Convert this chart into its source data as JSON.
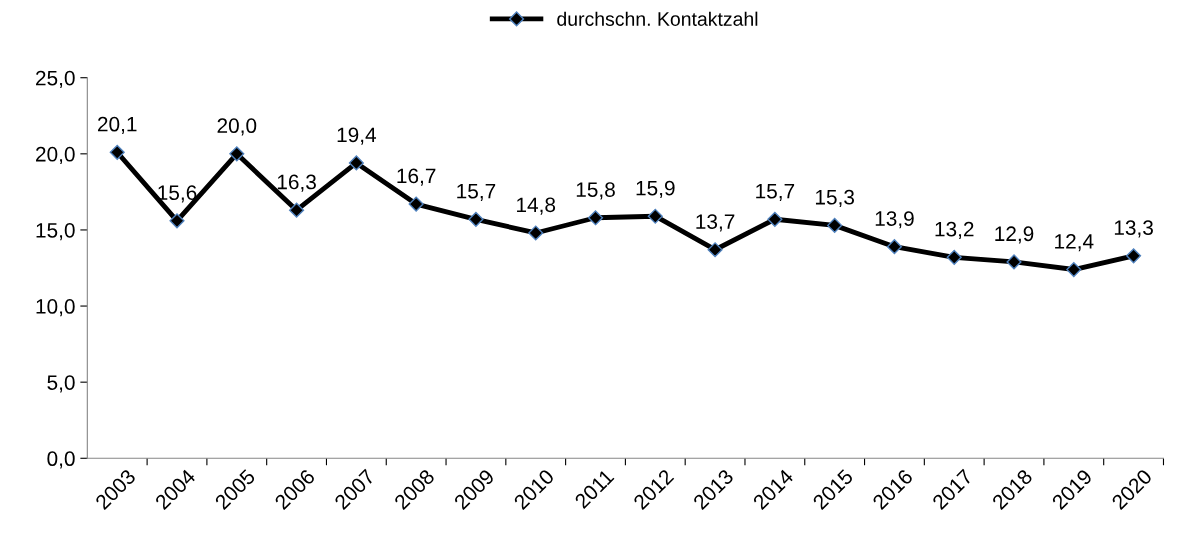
{
  "chart_data": {
    "type": "line",
    "categories": [
      "2003",
      "2004",
      "2005",
      "2006",
      "2007",
      "2008",
      "2009",
      "2010",
      "2011",
      "2012",
      "2013",
      "2014",
      "2015",
      "2016",
      "2017",
      "2018",
      "2019",
      "2020"
    ],
    "series": [
      {
        "name": "durchschn. Kontaktzahl",
        "color": "#000000",
        "values": [
          20.1,
          15.6,
          20.0,
          16.3,
          19.4,
          16.7,
          15.7,
          14.8,
          15.8,
          15.9,
          13.7,
          15.7,
          15.3,
          13.9,
          13.2,
          12.9,
          12.4,
          13.3
        ],
        "value_labels": [
          "20,1",
          "15,6",
          "20,0",
          "16,3",
          "19,4",
          "16,7",
          "15,7",
          "14,8",
          "15,8",
          "15,9",
          "13,7",
          "15,7",
          "15,3",
          "13,9",
          "13,2",
          "12,9",
          "12,4",
          "13,3"
        ]
      }
    ],
    "ylim": [
      0,
      25
    ],
    "yticks": [
      {
        "value": 0,
        "label": "0,0"
      },
      {
        "value": 5,
        "label": "5,0"
      },
      {
        "value": 10,
        "label": "10,0"
      },
      {
        "value": 15,
        "label": "15,0"
      },
      {
        "value": 20,
        "label": "20,0"
      },
      {
        "value": 25,
        "label": "25,0"
      }
    ],
    "marker": "diamond",
    "line_style": "solid",
    "grid": false,
    "legend": "top"
  }
}
